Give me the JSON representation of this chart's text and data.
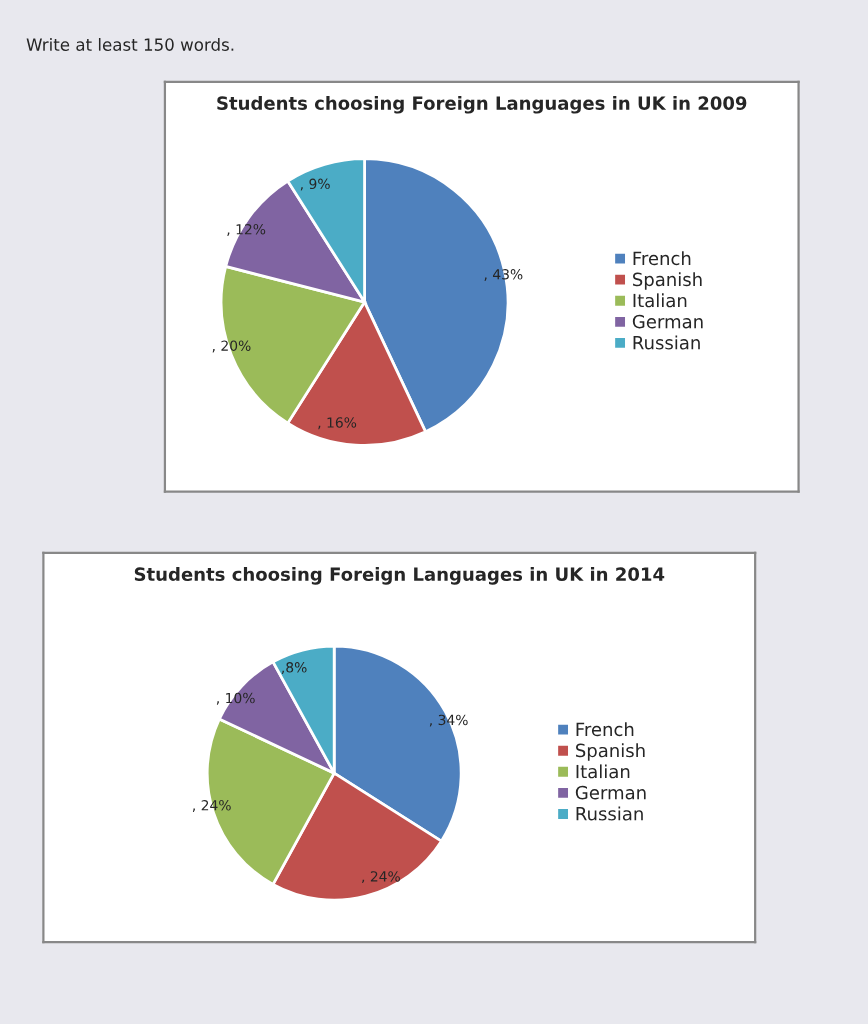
{
  "chart_data": [
    {
      "type": "pie",
      "title": "Students choosing Foreign Languages in UK in 2009",
      "annotations": [
        "Write at least 150 words."
      ],
      "categories": [
        "French",
        "Spanish",
        "Italian",
        "German",
        "Russian"
      ],
      "values": [
        43,
        16,
        20,
        12,
        9
      ],
      "value_labels": [
        ", 43%",
        ", 16%",
        ", 20%",
        ", 12%",
        ", 9%"
      ],
      "colors": [
        "#4f81bd",
        "#c0504d",
        "#9bbb59",
        "#8064a2",
        "#4bacc6"
      ],
      "legend": "right"
    },
    {
      "type": "pie",
      "title": "Students choosing Foreign Languages in UK in 2014",
      "categories": [
        "French",
        "Spanish",
        "Italian",
        "German",
        "Russian"
      ],
      "values": [
        34,
        24,
        24,
        10,
        8
      ],
      "value_labels": [
        ", 34%",
        ", 24%",
        ", 24%",
        ", 10%",
        ",8%"
      ],
      "colors": [
        "#4f81bd",
        "#c0504d",
        "#9bbb59",
        "#8064a2",
        "#4bacc6"
      ],
      "legend": "right"
    }
  ]
}
